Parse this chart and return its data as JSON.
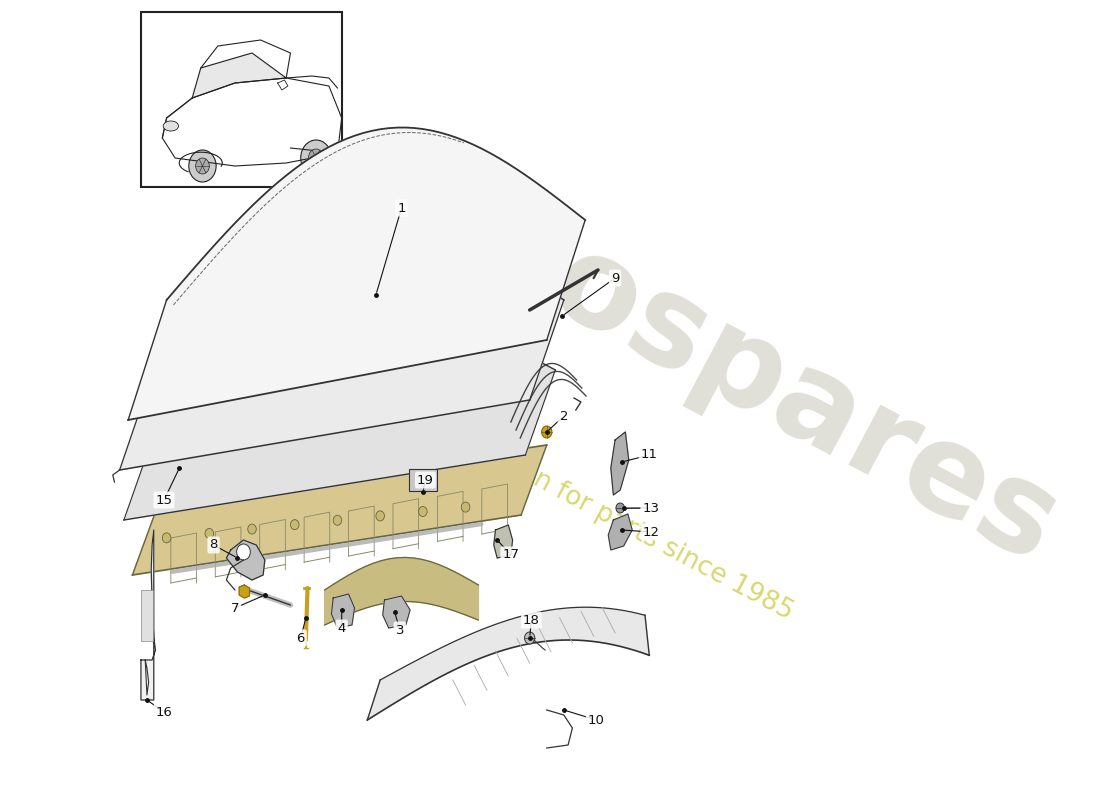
{
  "bg_color": "#ffffff",
  "watermark_text1": "eurospares",
  "watermark_text2": "a passion for parts since 1985",
  "watermark_color": "#e0e0d8",
  "wm_yellow": "#d8d870",
  "line_color": "#333333",
  "fill_light": "#f0f0f0",
  "fill_mid": "#e0e0e0",
  "fill_dark": "#c8c8c8",
  "fill_frame": "#d0c8a8",
  "gold_color": "#c8a020"
}
